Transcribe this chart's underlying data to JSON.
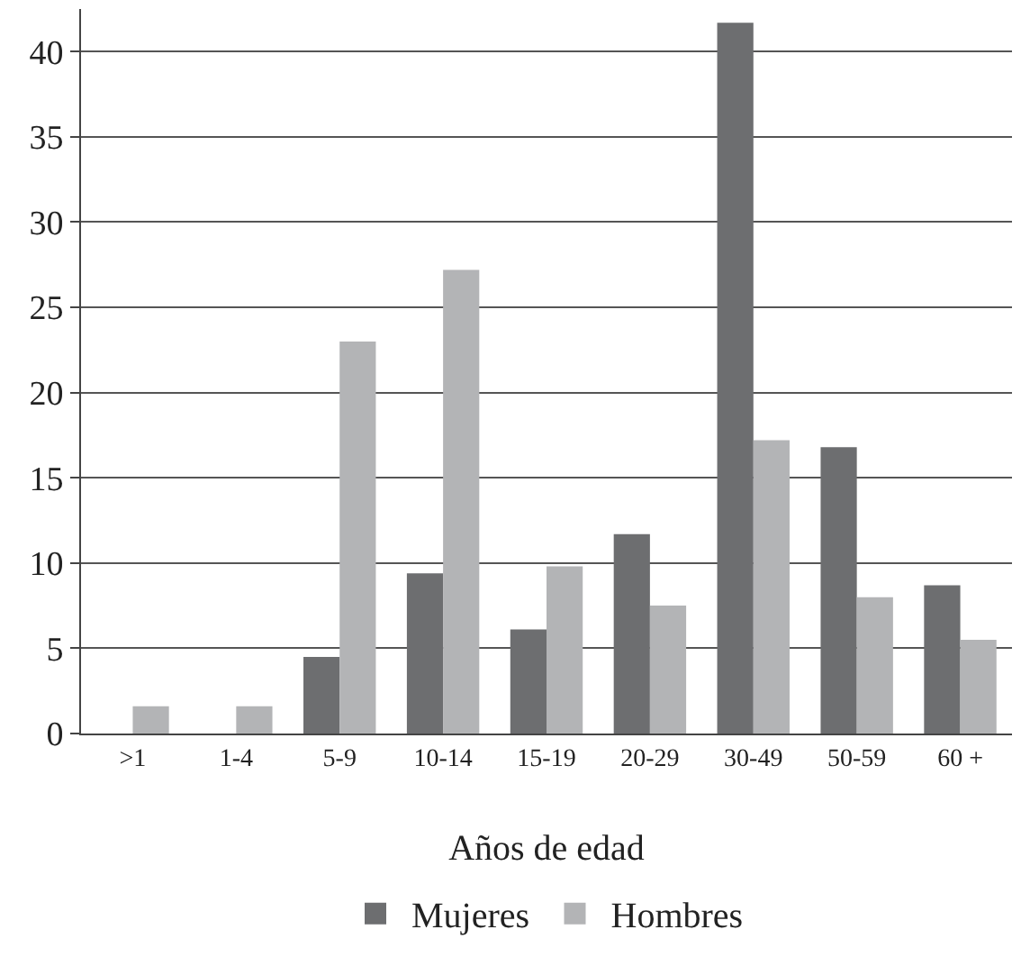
{
  "chart_data": {
    "type": "bar",
    "xlabel": "Años de edad",
    "categories": [
      ">1",
      "1-4",
      "5-9",
      "10-14",
      "15-19",
      "20-29",
      "30-49",
      "50-59",
      "60 +"
    ],
    "series": [
      {
        "name": "Mujeres",
        "color": "#6d6e70",
        "values": [
          0,
          0,
          4.5,
          9.4,
          6.1,
          11.7,
          41.7,
          16.8,
          8.7
        ]
      },
      {
        "name": "Hombres",
        "color": "#b3b4b6",
        "values": [
          1.6,
          1.6,
          23,
          27.2,
          9.8,
          7.5,
          17.2,
          8,
          5.5
        ]
      }
    ],
    "ylim": [
      0,
      42.5
    ],
    "yticks": [
      0,
      5,
      10,
      15,
      20,
      25,
      30,
      35,
      40
    ],
    "grid": "y",
    "legend": "bottom"
  }
}
